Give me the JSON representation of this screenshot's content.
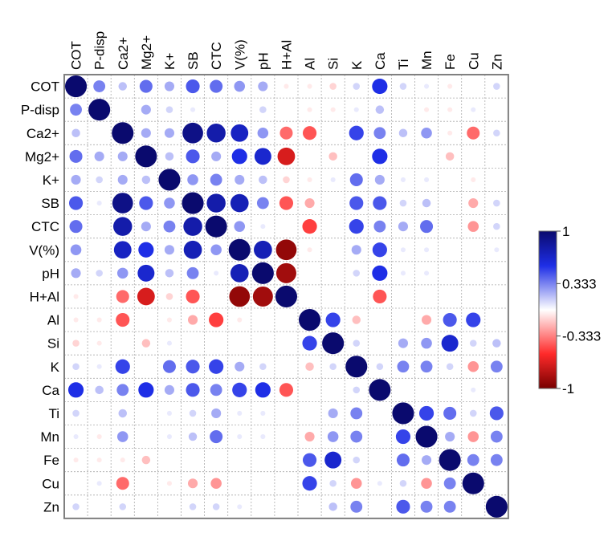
{
  "chart_data": {
    "type": "heatmap",
    "title": "",
    "variables": [
      "COT",
      "P-disp",
      "Ca2+",
      "Mg2+",
      "K+",
      "SB",
      "CTC",
      "V(%)",
      "pH",
      "H+Al",
      "Al",
      "Si",
      "K",
      "Ca",
      "Ti",
      "Mn",
      "Fe",
      "Cu",
      "Zn"
    ],
    "matrix": [
      [
        1.0,
        0.3,
        0.15,
        0.35,
        0.2,
        0.4,
        0.35,
        0.25,
        0.2,
        -0.05,
        -0.05,
        -0.1,
        0.1,
        0.5,
        0.1,
        0.05,
        -0.05,
        0.0,
        0.1
      ],
      [
        0.3,
        1.0,
        0.0,
        0.2,
        0.1,
        0.05,
        0.0,
        0.0,
        0.1,
        0.0,
        -0.05,
        -0.05,
        0.05,
        0.15,
        0.0,
        -0.05,
        -0.05,
        0.05,
        0.0
      ],
      [
        0.15,
        0.0,
        1.0,
        0.2,
        0.2,
        0.9,
        0.75,
        0.65,
        0.25,
        -0.35,
        -0.4,
        0.0,
        0.45,
        0.3,
        0.15,
        0.25,
        -0.05,
        -0.35,
        0.1
      ],
      [
        0.35,
        0.2,
        0.2,
        1.0,
        0.15,
        0.4,
        0.2,
        0.5,
        0.6,
        -0.65,
        0.0,
        -0.15,
        0.0,
        0.5,
        0.0,
        0.0,
        -0.15,
        0.0,
        0.0
      ],
      [
        0.2,
        0.1,
        0.2,
        0.15,
        1.0,
        0.25,
        0.3,
        0.2,
        0.15,
        -0.1,
        -0.05,
        0.05,
        0.35,
        0.2,
        0.05,
        0.05,
        0.0,
        -0.05,
        0.0
      ],
      [
        0.4,
        0.05,
        0.9,
        0.4,
        0.25,
        1.0,
        0.75,
        0.7,
        0.3,
        -0.4,
        -0.2,
        0.0,
        0.4,
        0.4,
        0.1,
        0.15,
        0.0,
        -0.2,
        0.1
      ],
      [
        0.35,
        0.0,
        0.75,
        0.2,
        0.3,
        0.75,
        1.0,
        0.25,
        0.05,
        0.0,
        -0.45,
        0.0,
        0.45,
        0.3,
        0.2,
        0.35,
        0.0,
        -0.25,
        0.1
      ],
      [
        0.25,
        0.0,
        0.65,
        0.5,
        0.2,
        0.7,
        0.25,
        1.0,
        0.7,
        -0.9,
        -0.05,
        0.0,
        0.2,
        0.45,
        0.05,
        0.05,
        0.0,
        0.0,
        0.05
      ],
      [
        0.2,
        0.1,
        0.25,
        0.6,
        0.15,
        0.3,
        0.05,
        0.7,
        1.0,
        -0.85,
        0.0,
        0.0,
        0.1,
        0.5,
        0.05,
        0.05,
        0.0,
        0.0,
        0.0
      ],
      [
        -0.05,
        0.0,
        -0.35,
        -0.65,
        -0.1,
        -0.4,
        0.0,
        -0.9,
        -0.85,
        1.0,
        0.0,
        0.0,
        0.0,
        -0.4,
        0.0,
        0.0,
        0.0,
        0.0,
        0.0
      ],
      [
        -0.05,
        -0.05,
        -0.4,
        0.0,
        -0.05,
        -0.2,
        -0.45,
        -0.05,
        0.0,
        0.0,
        1.0,
        0.45,
        -0.15,
        0.0,
        0.0,
        -0.2,
        0.4,
        0.45,
        0.0
      ],
      [
        -0.1,
        -0.05,
        0.0,
        -0.15,
        0.05,
        0.0,
        0.0,
        0.0,
        0.0,
        0.0,
        0.45,
        1.0,
        0.1,
        0.0,
        0.2,
        0.25,
        0.6,
        0.1,
        0.15
      ],
      [
        0.1,
        0.05,
        0.45,
        0.0,
        0.35,
        0.4,
        0.45,
        0.2,
        0.1,
        0.0,
        -0.15,
        0.1,
        1.0,
        0.1,
        0.3,
        0.3,
        0.1,
        -0.25,
        0.3
      ],
      [
        0.5,
        0.15,
        0.3,
        0.5,
        0.2,
        0.4,
        0.3,
        0.45,
        0.5,
        -0.4,
        0.0,
        0.0,
        0.1,
        1.0,
        0.0,
        0.0,
        0.0,
        0.05,
        0.0
      ],
      [
        0.1,
        0.0,
        0.15,
        0.0,
        0.05,
        0.1,
        0.2,
        0.05,
        0.05,
        0.0,
        0.0,
        0.2,
        0.3,
        0.0,
        1.0,
        0.45,
        0.35,
        0.1,
        0.4
      ],
      [
        0.05,
        -0.05,
        0.25,
        0.0,
        0.05,
        0.15,
        0.35,
        0.05,
        0.05,
        0.0,
        -0.2,
        0.25,
        0.3,
        0.0,
        0.45,
        1.0,
        0.2,
        -0.25,
        0.3
      ],
      [
        -0.05,
        -0.05,
        -0.05,
        -0.15,
        0.0,
        0.0,
        0.0,
        0.0,
        0.0,
        0.0,
        0.4,
        0.6,
        0.1,
        0.0,
        0.35,
        0.2,
        1.0,
        0.3,
        0.3
      ],
      [
        0.0,
        0.05,
        -0.35,
        0.0,
        -0.05,
        -0.2,
        -0.25,
        0.0,
        0.0,
        0.0,
        0.45,
        0.1,
        -0.25,
        0.05,
        0.1,
        -0.25,
        0.3,
        1.0,
        0.0
      ],
      [
        0.1,
        0.0,
        0.1,
        0.0,
        0.0,
        0.1,
        0.1,
        0.05,
        0.0,
        0.0,
        0.0,
        0.15,
        0.3,
        0.0,
        0.4,
        0.3,
        0.3,
        0.0,
        1.0
      ]
    ],
    "scale": {
      "min": -1,
      "max": 1,
      "ticks": [
        {
          "value": 1,
          "label": "1"
        },
        {
          "value": 0.333,
          "label": "0.333"
        },
        {
          "value": -0.333,
          "label": "-0.333"
        },
        {
          "value": -1,
          "label": "-1"
        }
      ]
    },
    "colors": {
      "positive_strong": "#0a0a6e",
      "positive_mid": "#1e2ee6",
      "neutral": "#ffffff",
      "negative_mid": "#ff2a2a",
      "negative_strong": "#780000",
      "grid_line": "#aaaaaa",
      "border": "#808080"
    },
    "grid": true,
    "legend_position": "right"
  }
}
